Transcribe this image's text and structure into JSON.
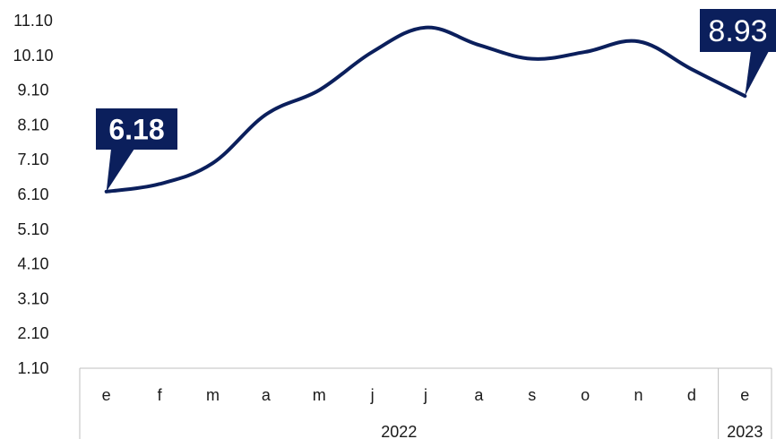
{
  "chart_data": {
    "type": "line",
    "title": "",
    "xlabel": "",
    "ylabel": "",
    "categories": [
      "e",
      "f",
      "m",
      "a",
      "m",
      "j",
      "j",
      "a",
      "s",
      "o",
      "n",
      "d",
      "e"
    ],
    "year_groups": [
      {
        "label": "2022",
        "start_index": 0,
        "end_index": 11
      },
      {
        "label": "2023",
        "start_index": 12,
        "end_index": 12
      }
    ],
    "series": [
      {
        "values": [
          6.18,
          6.4,
          7.0,
          8.4,
          9.1,
          10.2,
          10.9,
          10.4,
          10.0,
          10.2,
          10.5,
          9.7,
          8.93
        ],
        "color": "#0b1f5c"
      }
    ],
    "yticks": [
      "1.10",
      "2.10",
      "3.10",
      "4.10",
      "5.10",
      "6.10",
      "7.10",
      "8.10",
      "9.10",
      "10.10",
      "11.10"
    ],
    "ylim": [
      1.1,
      11.1
    ],
    "grid": false,
    "callouts": [
      {
        "index": 0,
        "label": "6.18",
        "bold": true
      },
      {
        "index": 12,
        "label": "8.93",
        "bold": false
      }
    ],
    "colors": {
      "line": "#0b1f5c",
      "callout_bg": "#0b1f5c",
      "callout_text": "#ffffff"
    }
  }
}
